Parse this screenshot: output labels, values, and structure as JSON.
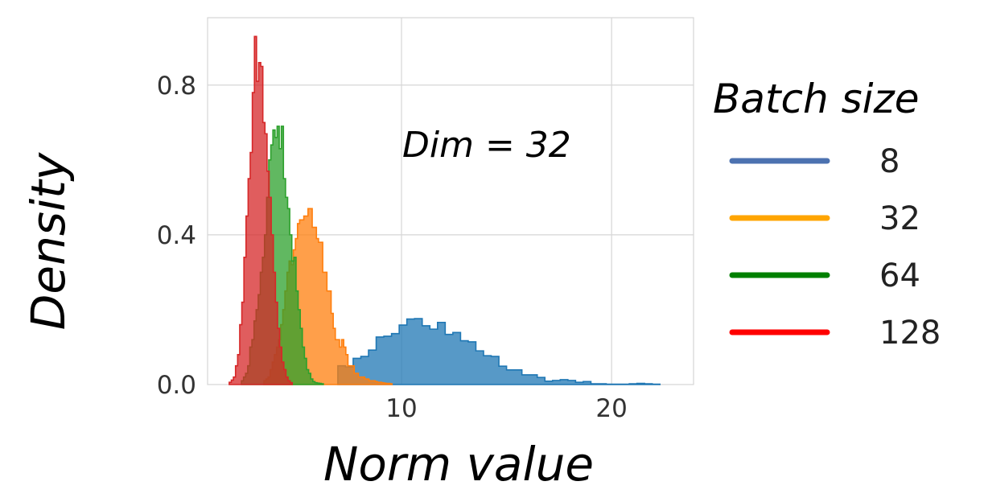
{
  "chart_data": {
    "type": "histogram",
    "title": "",
    "annotation": "Dim = 32",
    "xlabel": "Norm value",
    "ylabel": "Density",
    "xlim": [
      0.77,
      23.9
    ],
    "ylim": [
      0,
      0.98
    ],
    "xticks": [
      10,
      20
    ],
    "xtick_labels": [
      "10",
      "20"
    ],
    "yticks": [
      0.0,
      0.4,
      0.8
    ],
    "ytick_labels": [
      "0.0",
      "0.4",
      "0.8"
    ],
    "grid": true,
    "legend": {
      "title": "Batch size",
      "placement": "right-outside",
      "entries": [
        {
          "label": "8",
          "color": "#4c72b0"
        },
        {
          "label": "32",
          "color": "#ffa500"
        },
        {
          "label": "64",
          "color": "#008000"
        },
        {
          "label": "128",
          "color": "#ff0000"
        }
      ]
    },
    "series": [
      {
        "name": "8",
        "color": "#1f77b4",
        "bin_start": 6.97,
        "bin_width": 0.365,
        "density": [
          0.05,
          0.047,
          0.07,
          0.075,
          0.092,
          0.127,
          0.129,
          0.136,
          0.159,
          0.175,
          0.176,
          0.157,
          0.148,
          0.166,
          0.134,
          0.139,
          0.117,
          0.114,
          0.09,
          0.077,
          0.075,
          0.049,
          0.039,
          0.039,
          0.026,
          0.026,
          0.019,
          0.009,
          0.011,
          0.013,
          0.011,
          0.006,
          0.008,
          0.002,
          0.002,
          0.001,
          0.001,
          0.001,
          0.002,
          0.003,
          0.002,
          0.001
        ]
      },
      {
        "name": "32",
        "color": "#ff7f0e",
        "bin_start": 3.45,
        "bin_width": 0.1,
        "density": [
          0.01,
          0.015,
          0.02,
          0.04,
          0.06,
          0.08,
          0.1,
          0.12,
          0.16,
          0.2,
          0.25,
          0.3,
          0.33,
          0.32,
          0.36,
          0.39,
          0.43,
          0.44,
          0.44,
          0.45,
          0.45,
          0.47,
          0.47,
          0.42,
          0.42,
          0.39,
          0.38,
          0.38,
          0.3,
          0.3,
          0.25,
          0.25,
          0.19,
          0.15,
          0.12,
          0.12,
          0.1,
          0.12,
          0.1,
          0.08,
          0.05,
          0.05,
          0.05,
          0.03,
          0.03,
          0.02,
          0.02,
          0.02,
          0.015,
          0.015,
          0.01,
          0.01,
          0.01,
          0.008,
          0.006,
          0.006,
          0.005,
          0.004,
          0.003,
          0.003,
          0.002
        ]
      },
      {
        "name": "64",
        "color": "#2ca02c",
        "bin_start": 2.38,
        "bin_width": 0.1,
        "density": [
          0.01,
          0.02,
          0.03,
          0.05,
          0.1,
          0.12,
          0.17,
          0.2,
          0.24,
          0.3,
          0.34,
          0.4,
          0.5,
          0.6,
          0.64,
          0.68,
          0.66,
          0.69,
          0.63,
          0.69,
          0.55,
          0.5,
          0.47,
          0.4,
          0.33,
          0.34,
          0.25,
          0.2,
          0.15,
          0.1,
          0.07,
          0.04,
          0.03,
          0.015,
          0.008,
          0.005,
          0.004,
          0.003,
          0.002
        ]
      },
      {
        "name": "128",
        "color": "#d62728",
        "bin_start": 1.8,
        "bin_width": 0.1,
        "density": [
          0.006,
          0.012,
          0.02,
          0.05,
          0.08,
          0.16,
          0.22,
          0.34,
          0.45,
          0.55,
          0.62,
          0.78,
          0.93,
          0.81,
          0.86,
          0.85,
          0.7,
          0.67,
          0.57,
          0.5,
          0.4,
          0.3,
          0.22,
          0.15,
          0.1,
          0.06,
          0.04,
          0.02,
          0.01,
          0.005
        ]
      }
    ]
  }
}
